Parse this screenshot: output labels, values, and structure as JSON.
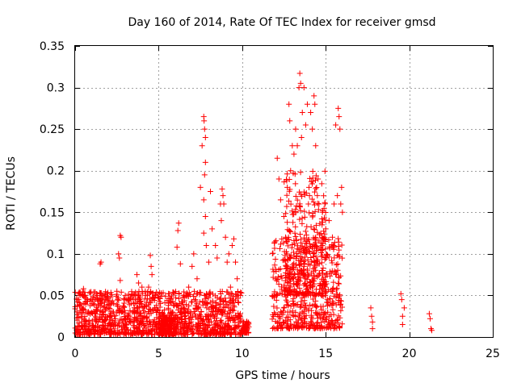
{
  "chart_data": {
    "type": "scatter",
    "title": "Day 160 of 2014, Rate Of TEC Index for receiver gmsd",
    "xlabel": "GPS time / hours",
    "ylabel": "ROTI / TECUs",
    "xlim": [
      0,
      25
    ],
    "ylim": [
      0,
      0.35
    ],
    "xticks": [
      0,
      5,
      10,
      15,
      20,
      25
    ],
    "xtick_labels": [
      "0",
      "5",
      "10",
      "15",
      "20",
      "25"
    ],
    "yticks": [
      0,
      0.05,
      0.1,
      0.15,
      0.2,
      0.25,
      0.3,
      0.35
    ],
    "ytick_labels": [
      "0",
      "0.05",
      "0.1",
      "0.15",
      "0.2",
      "0.25",
      "0.3",
      "0.35"
    ],
    "grid": true,
    "marker": "+",
    "color": "#ff0000",
    "series": [
      {
        "name": "ROTI",
        "points": [
          [
            0.1,
            0.03
          ],
          [
            0.2,
            0.045
          ],
          [
            0.3,
            0.05
          ],
          [
            0.4,
            0.035
          ],
          [
            0.5,
            0.058
          ],
          [
            0.6,
            0.042
          ],
          [
            0.8,
            0.03
          ],
          [
            1.0,
            0.04
          ],
          [
            1.2,
            0.028
          ],
          [
            1.5,
            0.088
          ],
          [
            1.55,
            0.09
          ],
          [
            1.8,
            0.045
          ],
          [
            2.0,
            0.035
          ],
          [
            2.3,
            0.03
          ],
          [
            2.5,
            0.055
          ],
          [
            2.6,
            0.1
          ],
          [
            2.65,
            0.095
          ],
          [
            2.7,
            0.122
          ],
          [
            2.75,
            0.12
          ],
          [
            2.7,
            0.068
          ],
          [
            3.0,
            0.05
          ],
          [
            3.2,
            0.045
          ],
          [
            3.5,
            0.04
          ],
          [
            3.7,
            0.075
          ],
          [
            3.8,
            0.065
          ],
          [
            4.0,
            0.06
          ],
          [
            4.2,
            0.055
          ],
          [
            4.4,
            0.06
          ],
          [
            4.5,
            0.098
          ],
          [
            4.55,
            0.085
          ],
          [
            4.6,
            0.075
          ],
          [
            4.8,
            0.05
          ],
          [
            5.2,
            0.02
          ],
          [
            5.5,
            0.018
          ],
          [
            5.8,
            0.03
          ],
          [
            6.0,
            0.04
          ],
          [
            6.1,
            0.108
          ],
          [
            6.15,
            0.128
          ],
          [
            6.2,
            0.137
          ],
          [
            6.3,
            0.088
          ],
          [
            6.5,
            0.05
          ],
          [
            6.8,
            0.06
          ],
          [
            7.0,
            0.085
          ],
          [
            7.1,
            0.1
          ],
          [
            7.3,
            0.07
          ],
          [
            7.5,
            0.18
          ],
          [
            7.6,
            0.23
          ],
          [
            7.7,
            0.265
          ],
          [
            7.72,
            0.26
          ],
          [
            7.75,
            0.25
          ],
          [
            7.8,
            0.24
          ],
          [
            7.8,
            0.21
          ],
          [
            7.75,
            0.195
          ],
          [
            7.7,
            0.165
          ],
          [
            7.8,
            0.145
          ],
          [
            7.7,
            0.125
          ],
          [
            7.85,
            0.11
          ],
          [
            8.0,
            0.09
          ],
          [
            8.1,
            0.175
          ],
          [
            8.2,
            0.13
          ],
          [
            8.4,
            0.11
          ],
          [
            8.5,
            0.095
          ],
          [
            8.7,
            0.16
          ],
          [
            8.75,
            0.14
          ],
          [
            8.8,
            0.178
          ],
          [
            8.85,
            0.17
          ],
          [
            8.9,
            0.16
          ],
          [
            9.0,
            0.12
          ],
          [
            9.1,
            0.09
          ],
          [
            9.2,
            0.1
          ],
          [
            9.3,
            0.06
          ],
          [
            9.4,
            0.11
          ],
          [
            9.5,
            0.118
          ],
          [
            9.6,
            0.09
          ],
          [
            9.7,
            0.07
          ],
          [
            9.9,
            0.05
          ],
          [
            10.1,
            0.012
          ],
          [
            10.3,
            0.015
          ],
          [
            11.9,
            0.05
          ],
          [
            12.0,
            0.07
          ],
          [
            12.1,
            0.215
          ],
          [
            12.2,
            0.19
          ],
          [
            12.3,
            0.165
          ],
          [
            12.5,
            0.145
          ],
          [
            12.6,
            0.12
          ],
          [
            12.7,
            0.18
          ],
          [
            12.8,
            0.28
          ],
          [
            12.85,
            0.26
          ],
          [
            12.9,
            0.2
          ],
          [
            13.0,
            0.23
          ],
          [
            13.1,
            0.22
          ],
          [
            13.2,
            0.25
          ],
          [
            13.3,
            0.23
          ],
          [
            13.4,
            0.3
          ],
          [
            13.45,
            0.317
          ],
          [
            13.5,
            0.305
          ],
          [
            13.55,
            0.24
          ],
          [
            13.6,
            0.27
          ],
          [
            13.7,
            0.3
          ],
          [
            13.8,
            0.255
          ],
          [
            13.9,
            0.28
          ],
          [
            14.0,
            0.18
          ],
          [
            14.1,
            0.27
          ],
          [
            14.2,
            0.25
          ],
          [
            14.3,
            0.29
          ],
          [
            14.35,
            0.28
          ],
          [
            14.4,
            0.23
          ],
          [
            14.5,
            0.17
          ],
          [
            14.6,
            0.16
          ],
          [
            14.8,
            0.15
          ],
          [
            15.0,
            0.13
          ],
          [
            15.2,
            0.14
          ],
          [
            15.4,
            0.12
          ],
          [
            15.5,
            0.16
          ],
          [
            15.6,
            0.255
          ],
          [
            15.7,
            0.17
          ],
          [
            15.75,
            0.275
          ],
          [
            15.8,
            0.265
          ],
          [
            15.85,
            0.25
          ],
          [
            15.9,
            0.16
          ],
          [
            15.95,
            0.18
          ],
          [
            16.0,
            0.15
          ],
          [
            17.7,
            0.035
          ],
          [
            17.75,
            0.025
          ],
          [
            17.8,
            0.018
          ],
          [
            17.8,
            0.01
          ],
          [
            19.5,
            0.052
          ],
          [
            19.55,
            0.045
          ],
          [
            19.6,
            0.025
          ],
          [
            19.6,
            0.015
          ],
          [
            19.7,
            0.035
          ],
          [
            21.2,
            0.028
          ],
          [
            21.25,
            0.022
          ],
          [
            21.3,
            0.01
          ],
          [
            21.35,
            0.008
          ]
        ]
      }
    ],
    "dense_clusters": [
      {
        "x": [
          0.0,
          10.0
        ],
        "y": [
          0.003,
          0.055
        ]
      },
      {
        "x": [
          5.0,
          6.0
        ],
        "y": [
          0.003,
          0.025
        ]
      },
      {
        "x": [
          10.0,
          10.4
        ],
        "y": [
          0.005,
          0.02
        ]
      },
      {
        "x": [
          11.8,
          16.0
        ],
        "y": [
          0.01,
          0.12
        ]
      },
      {
        "x": [
          12.5,
          15.0
        ],
        "y": [
          0.05,
          0.2
        ]
      }
    ]
  }
}
